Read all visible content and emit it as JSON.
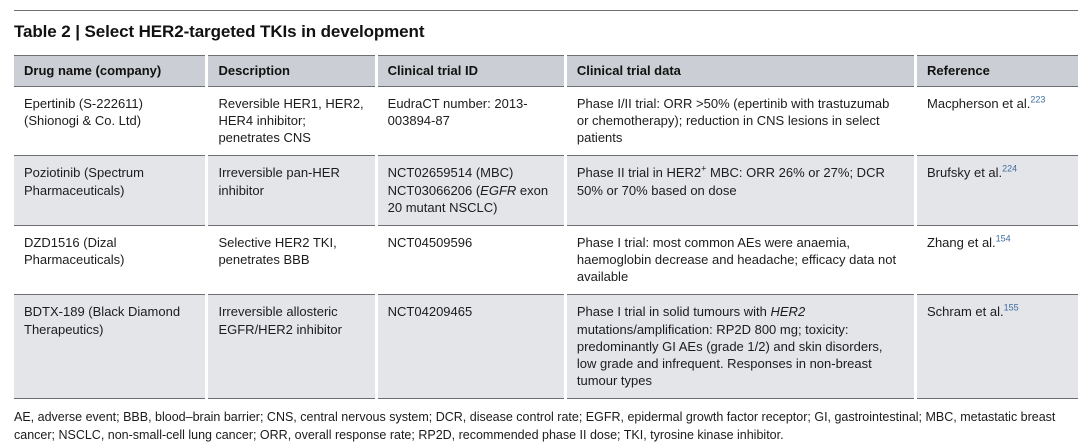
{
  "page": {
    "title": "Table 2 | Select HER2-targeted TKIs in development"
  },
  "table": {
    "columns": [
      "Drug name (company)",
      "Description",
      "Clinical trial ID",
      "Clinical trial data",
      "Reference"
    ],
    "cell_keys": [
      "drug",
      "description",
      "trial_id",
      "trial_data",
      "reference"
    ],
    "rows": [
      {
        "drug": [
          {
            "t": "Epertinib (S-222611) (Shionogi & Co. Ltd)"
          }
        ],
        "description": [
          {
            "t": "Reversible HER1, HER2, HER4 inhibitor; penetrates CNS"
          }
        ],
        "trial_id": [
          {
            "t": "EudraCT number: 2013-003894-87"
          }
        ],
        "trial_data": [
          {
            "t": "Phase I/II trial: ORR >50% (epertinib with trastuzumab or chemotherapy); reduction in CNS lesions in select patients"
          }
        ],
        "reference": [
          {
            "t": "Macpherson et al."
          },
          {
            "t": "223",
            "sup": true,
            "link": true
          }
        ]
      },
      {
        "drug": [
          {
            "t": "Poziotinib (Spectrum Pharmaceuticals)"
          }
        ],
        "description": [
          {
            "t": "Irreversible pan-HER inhibitor"
          }
        ],
        "trial_id": [
          {
            "t": "NCT02659514 (MBC)\nNCT03066206 ("
          },
          {
            "t": "EGFR",
            "i": true
          },
          {
            "t": " exon 20 mutant NSCLC)"
          }
        ],
        "trial_data": [
          {
            "t": "Phase II trial in HER2"
          },
          {
            "t": "+",
            "sup": true
          },
          {
            "t": " MBC: ORR 26% or 27%; DCR 50% or 70% based on dose"
          }
        ],
        "reference": [
          {
            "t": "Brufsky et al."
          },
          {
            "t": "224",
            "sup": true,
            "link": true
          }
        ]
      },
      {
        "drug": [
          {
            "t": "DZD1516 (Dizal Pharmaceuticals)"
          }
        ],
        "description": [
          {
            "t": "Selective HER2 TKI, penetrates BBB"
          }
        ],
        "trial_id": [
          {
            "t": "NCT04509596"
          }
        ],
        "trial_data": [
          {
            "t": "Phase I trial: most common AEs were anaemia, haemoglobin decrease and headache; efficacy data not available"
          }
        ],
        "reference": [
          {
            "t": "Zhang et al."
          },
          {
            "t": "154",
            "sup": true,
            "link": true
          }
        ]
      },
      {
        "drug": [
          {
            "t": "BDTX-189 (Black Diamond Therapeutics)"
          }
        ],
        "description": [
          {
            "t": "Irreversible allosteric EGFR/HER2 inhibitor"
          }
        ],
        "trial_id": [
          {
            "t": "NCT04209465"
          }
        ],
        "trial_data": [
          {
            "t": "Phase I trial in solid tumours with "
          },
          {
            "t": "HER2",
            "i": true
          },
          {
            "t": " mutations/amplification: RP2D 800 mg; toxicity: predominantly GI AEs (grade 1/2) and skin disorders, low grade and infrequent. Responses in non-breast tumour types"
          }
        ],
        "reference": [
          {
            "t": "Schram et al."
          },
          {
            "t": "155",
            "sup": true,
            "link": true
          }
        ]
      }
    ],
    "footnote": "AE, adverse event; BBB, blood–brain barrier; CNS, central nervous system; DCR, disease control rate; EGFR, epidermal growth factor receptor; GI, gastrointestinal; MBC, metastatic breast cancer; NSCLC, non-small-cell lung cancer; ORR, overall response rate; RP2D, recommended phase II dose; TKI, tyrosine kinase inhibitor."
  },
  "colors": {
    "header_bg": "#cbced4",
    "alt_row_bg": "#e4e5e8",
    "border": "#6d6f73",
    "top_rule": "#6d6f73",
    "citation": "#3d6da1",
    "text": "#1c1c1e"
  }
}
